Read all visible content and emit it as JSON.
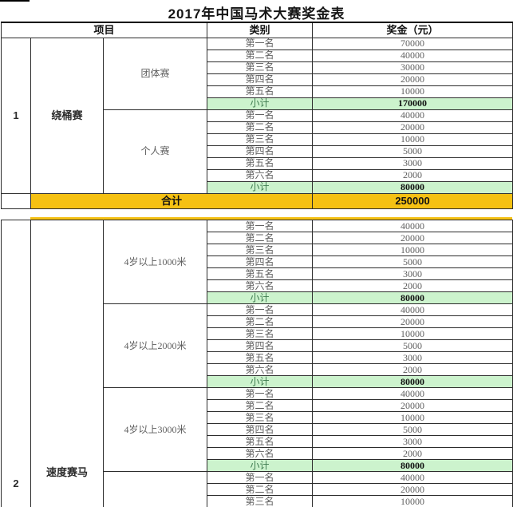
{
  "title": "2017年中国马术大赛奖金表",
  "header": {
    "col_project": "项目",
    "col_category": "类别",
    "col_prize": "奖金（元）"
  },
  "colors": {
    "subtotal_bg": "#ccf3cd",
    "subtotal_fg": "#3e7b4f",
    "total_bg": "#f5c113",
    "grid": "#2c2c2c"
  },
  "sections": [
    {
      "index": "1",
      "name": "绕桶赛",
      "groups": [
        {
          "label": "团体赛",
          "rows": [
            [
              "第一名",
              "70000"
            ],
            [
              "第二名",
              "40000"
            ],
            [
              "第三名",
              "30000"
            ],
            [
              "第四名",
              "20000"
            ],
            [
              "第五名",
              "10000"
            ]
          ],
          "subtotal": {
            "label": "小计",
            "value": "170000"
          }
        },
        {
          "label": "个人赛",
          "rows": [
            [
              "第一名",
              "40000"
            ],
            [
              "第二名",
              "20000"
            ],
            [
              "第三名",
              "10000"
            ],
            [
              "第四名",
              "5000"
            ],
            [
              "第五名",
              "3000"
            ],
            [
              "第六名",
              "2000"
            ]
          ],
          "subtotal": {
            "label": "小计",
            "value": "80000"
          }
        }
      ],
      "total": {
        "label": "合计",
        "value": "250000"
      }
    },
    {
      "index": "2",
      "name": "速度赛马",
      "groups": [
        {
          "label": "4岁以上1000米",
          "rows": [
            [
              "第一名",
              "40000"
            ],
            [
              "第二名",
              "20000"
            ],
            [
              "第三名",
              "10000"
            ],
            [
              "第四名",
              "5000"
            ],
            [
              "第五名",
              "3000"
            ],
            [
              "第六名",
              "2000"
            ]
          ],
          "subtotal": {
            "label": "小计",
            "value": "80000"
          }
        },
        {
          "label": "4岁以上2000米",
          "rows": [
            [
              "第一名",
              "40000"
            ],
            [
              "第二名",
              "20000"
            ],
            [
              "第三名",
              "10000"
            ],
            [
              "第四名",
              "5000"
            ],
            [
              "第五名",
              "3000"
            ],
            [
              "第六名",
              "2000"
            ]
          ],
          "subtotal": {
            "label": "小计",
            "value": "80000"
          }
        },
        {
          "label": "4岁以上3000米",
          "rows": [
            [
              "第一名",
              "40000"
            ],
            [
              "第二名",
              "20000"
            ],
            [
              "第三名",
              "10000"
            ],
            [
              "第四名",
              "5000"
            ],
            [
              "第五名",
              "3000"
            ],
            [
              "第六名",
              "2000"
            ]
          ],
          "subtotal": {
            "label": "小计",
            "value": "80000"
          }
        },
        {
          "label": "",
          "rows": [
            [
              "第一名",
              "40000"
            ],
            [
              "第二名",
              "20000"
            ],
            [
              "第三名",
              "10000"
            ]
          ],
          "subtotal": null
        }
      ],
      "total": null
    }
  ]
}
